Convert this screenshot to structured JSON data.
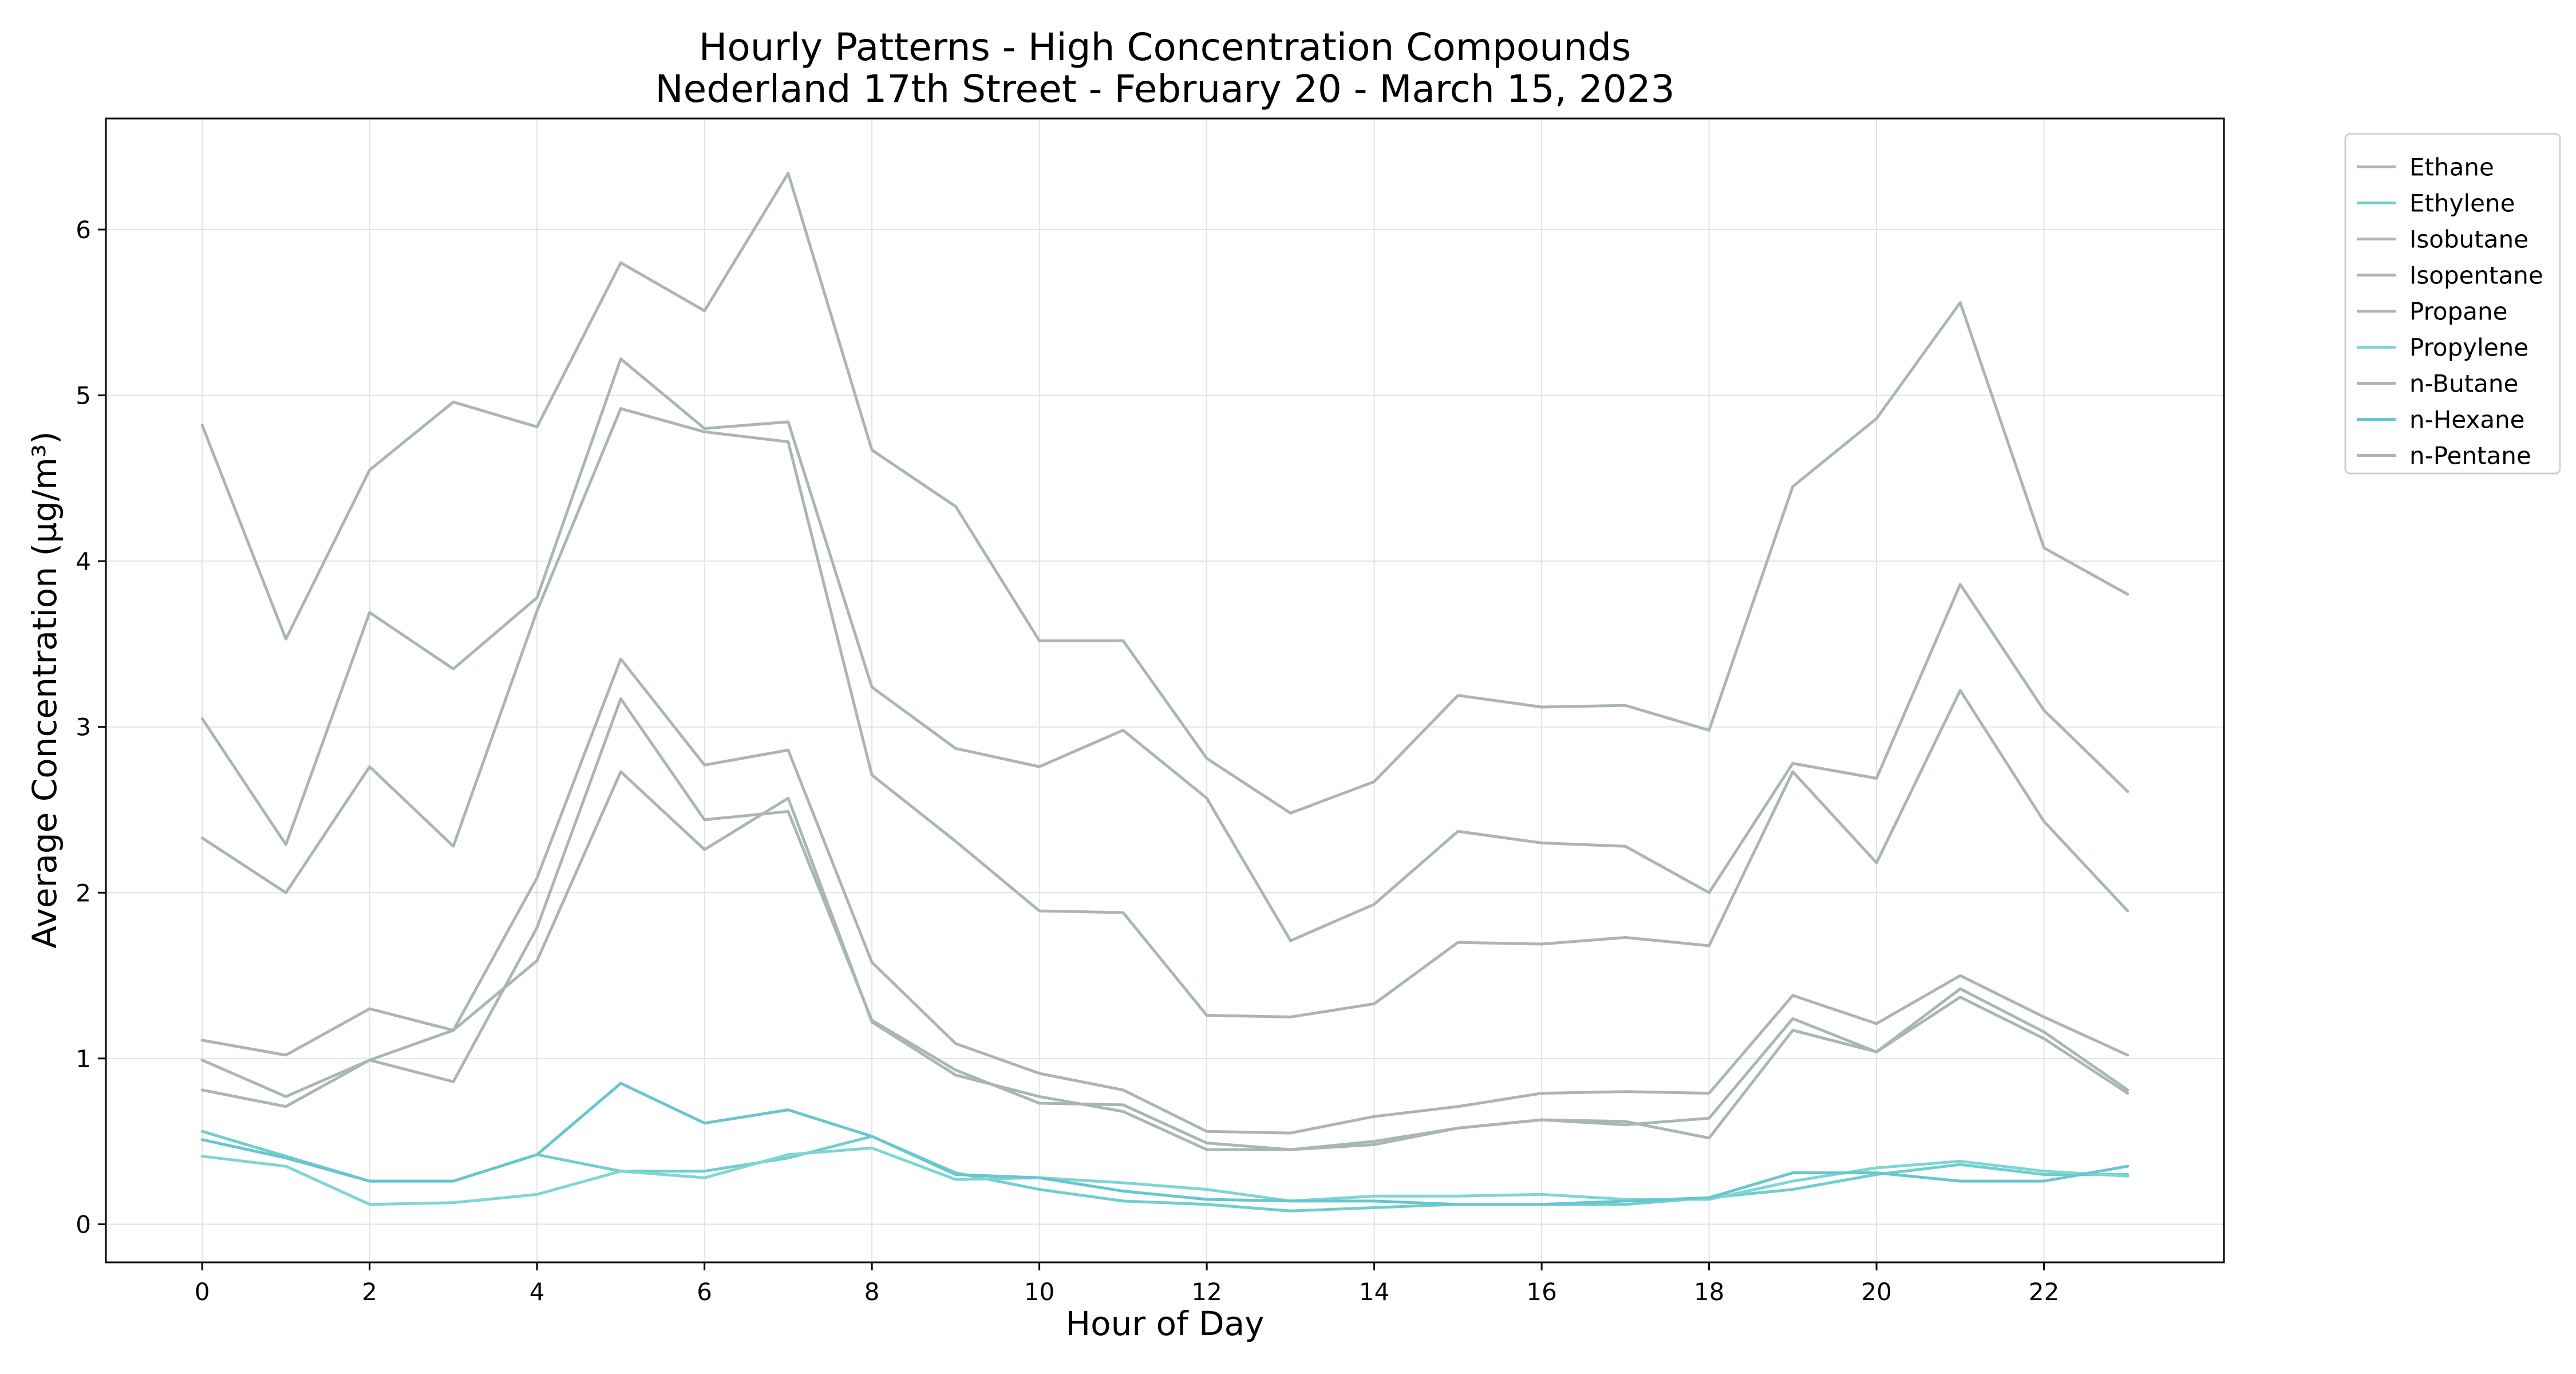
{
  "chart_data": {
    "type": "line",
    "title": "Hourly Patterns - High Concentration Compounds",
    "subtitle": "Nederland 17th Street - February 20 - March 15, 2023",
    "xlabel": "Hour of Day",
    "ylabel": "Average Concentration (µg/m³)",
    "xlim": [
      -1.15,
      24.15
    ],
    "ylim": [
      -0.23,
      6.67
    ],
    "x_ticks": [
      0,
      2,
      4,
      6,
      8,
      10,
      12,
      14,
      16,
      18,
      20,
      22
    ],
    "y_ticks": [
      0,
      1,
      2,
      3,
      4,
      5,
      6
    ],
    "grid": true,
    "legend_position": "outside-top-right",
    "x": [
      0,
      1,
      2,
      3,
      4,
      5,
      6,
      7,
      8,
      9,
      10,
      11,
      12,
      13,
      14,
      15,
      16,
      17,
      18,
      19,
      20,
      21,
      22,
      23
    ],
    "series": [
      {
        "name": "Ethane",
        "color": "#aab6b6",
        "values": [
          4.82,
          3.53,
          4.55,
          4.96,
          4.81,
          5.8,
          5.51,
          6.34,
          4.67,
          4.33,
          3.52,
          3.52,
          2.81,
          2.48,
          2.67,
          3.19,
          3.12,
          3.13,
          2.98,
          4.45,
          4.86,
          5.56,
          4.08,
          3.8
        ]
      },
      {
        "name": "Ethylene",
        "color": "#6fcfcb",
        "values": [
          0.56,
          0.41,
          0.26,
          0.26,
          0.42,
          0.32,
          0.32,
          0.4,
          0.53,
          0.31,
          0.21,
          0.14,
          0.12,
          0.08,
          0.1,
          0.12,
          0.12,
          0.12,
          0.16,
          0.21,
          0.3,
          0.36,
          0.3,
          0.3
        ]
      },
      {
        "name": "Isobutane",
        "color": "#aab6b6",
        "values": [
          0.81,
          0.71,
          0.99,
          1.17,
          1.59,
          2.73,
          2.26,
          2.57,
          1.22,
          0.9,
          0.77,
          0.68,
          0.45,
          0.45,
          0.5,
          0.58,
          0.63,
          0.62,
          0.52,
          1.17,
          1.04,
          1.37,
          1.12,
          0.79
        ]
      },
      {
        "name": "Isopentane",
        "color": "#aab6b6",
        "values": [
          0.99,
          0.77,
          0.99,
          0.86,
          1.79,
          3.17,
          2.44,
          2.49,
          1.23,
          0.93,
          0.73,
          0.72,
          0.49,
          0.45,
          0.48,
          0.58,
          0.63,
          0.6,
          0.64,
          1.24,
          1.04,
          1.42,
          1.16,
          0.81
        ]
      },
      {
        "name": "Propane",
        "color": "#aab6b6",
        "values": [
          2.33,
          2.0,
          2.76,
          2.28,
          3.7,
          4.92,
          4.78,
          4.72,
          2.71,
          2.31,
          1.89,
          1.88,
          1.26,
          1.25,
          1.33,
          1.7,
          1.69,
          1.73,
          1.68,
          2.73,
          2.18,
          3.22,
          2.43,
          1.89
        ]
      },
      {
        "name": "Propylene",
        "color": "#7ed6d2",
        "values": [
          0.41,
          0.35,
          0.12,
          0.13,
          0.18,
          0.32,
          0.28,
          0.42,
          0.46,
          0.27,
          0.28,
          0.25,
          0.21,
          0.14,
          0.17,
          0.17,
          0.18,
          0.15,
          0.15,
          0.26,
          0.34,
          0.38,
          0.32,
          0.29
        ]
      },
      {
        "name": "n-Butane",
        "color": "#aab6b6",
        "values": [
          3.05,
          2.29,
          3.69,
          3.35,
          3.78,
          5.22,
          4.8,
          4.84,
          3.24,
          2.87,
          2.76,
          2.98,
          2.57,
          1.71,
          1.93,
          2.37,
          2.3,
          2.28,
          2.0,
          2.78,
          2.69,
          3.86,
          3.1,
          2.61
        ]
      },
      {
        "name": "n-Hexane",
        "color": "#67c6cf",
        "values": [
          0.51,
          0.4,
          0.26,
          0.26,
          0.42,
          0.85,
          0.61,
          0.69,
          0.53,
          0.3,
          0.28,
          0.2,
          0.15,
          0.14,
          0.14,
          0.12,
          0.12,
          0.14,
          0.16,
          0.31,
          0.31,
          0.26,
          0.26,
          0.35
        ]
      },
      {
        "name": "n-Pentane",
        "color": "#aab6b6",
        "values": [
          1.11,
          1.02,
          1.3,
          1.17,
          2.09,
          3.41,
          2.77,
          2.86,
          1.58,
          1.09,
          0.91,
          0.81,
          0.56,
          0.55,
          0.65,
          0.71,
          0.79,
          0.8,
          0.79,
          1.38,
          1.21,
          1.5,
          1.25,
          1.02
        ]
      }
    ]
  }
}
